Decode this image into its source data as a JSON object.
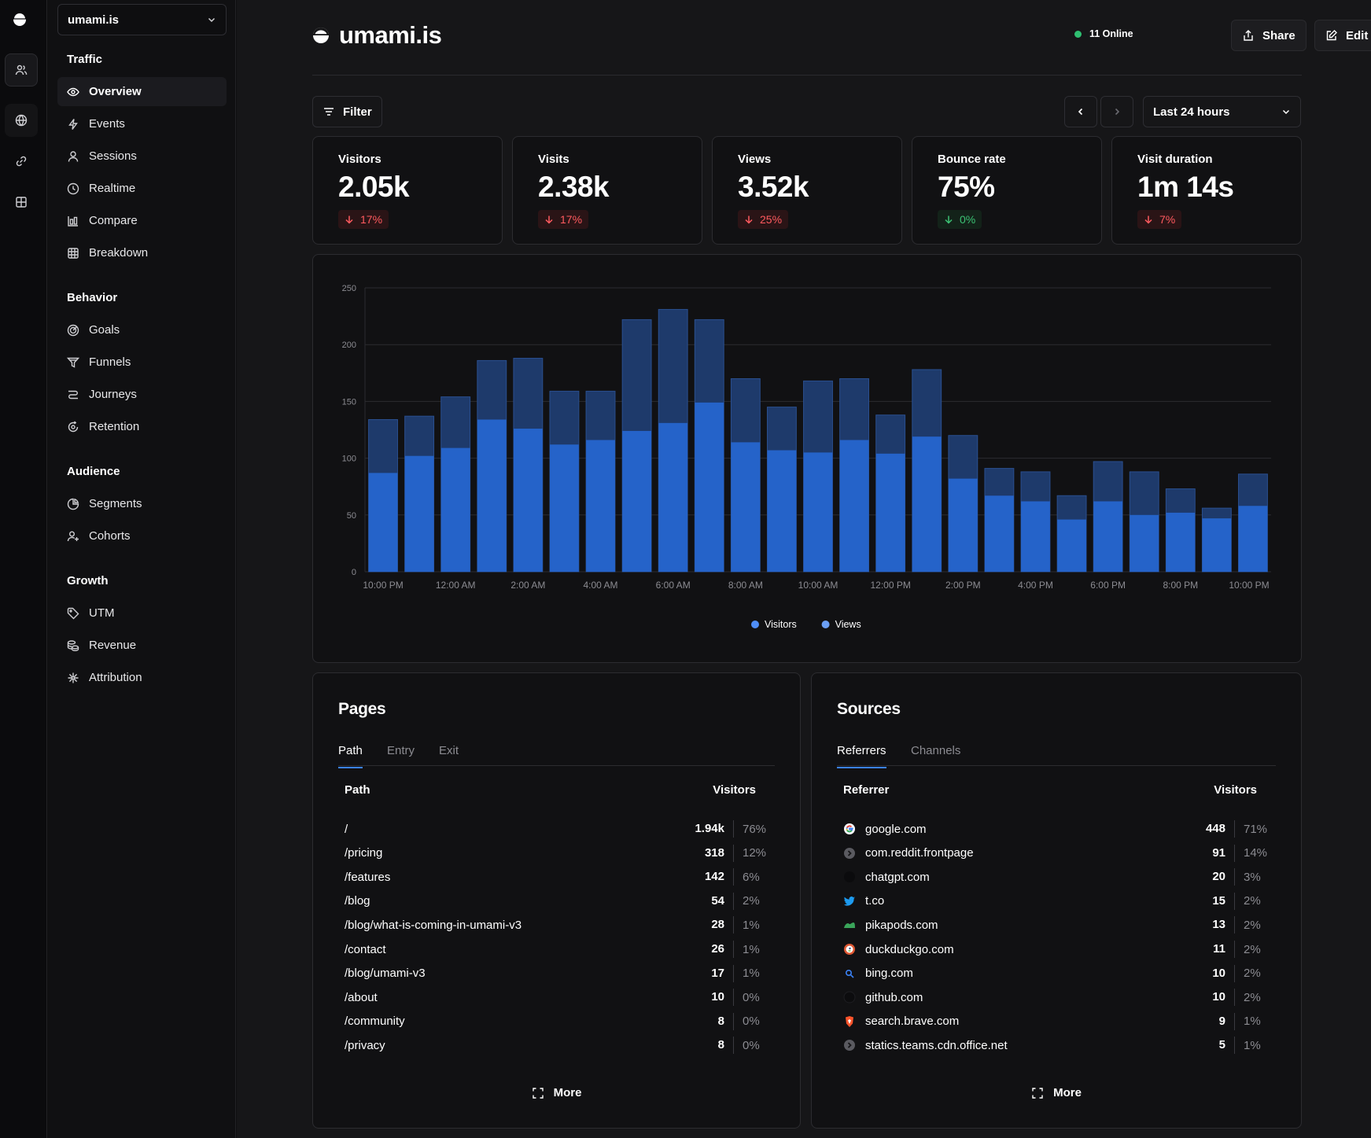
{
  "sidebar": {
    "site_select": "umami.is",
    "groups": [
      {
        "label": "Traffic",
        "items": [
          {
            "label": "Overview",
            "icon": "eye-icon"
          },
          {
            "label": "Events",
            "icon": "lightning-icon"
          },
          {
            "label": "Sessions",
            "icon": "user-icon"
          },
          {
            "label": "Realtime",
            "icon": "clock-icon"
          },
          {
            "label": "Compare",
            "icon": "compare-icon"
          },
          {
            "label": "Breakdown",
            "icon": "table-icon"
          }
        ]
      },
      {
        "label": "Behavior",
        "items": [
          {
            "label": "Goals",
            "icon": "target-icon"
          },
          {
            "label": "Funnels",
            "icon": "funnel-icon"
          },
          {
            "label": "Journeys",
            "icon": "route-icon"
          },
          {
            "label": "Retention",
            "icon": "retention-icon"
          }
        ]
      },
      {
        "label": "Audience",
        "items": [
          {
            "label": "Segments",
            "icon": "pie-icon"
          },
          {
            "label": "Cohorts",
            "icon": "user-plus-icon"
          }
        ]
      },
      {
        "label": "Growth",
        "items": [
          {
            "label": "UTM",
            "icon": "tag-icon"
          },
          {
            "label": "Revenue",
            "icon": "coins-icon"
          },
          {
            "label": "Attribution",
            "icon": "network-icon"
          }
        ]
      }
    ]
  },
  "header": {
    "title": "umami.is",
    "online": "11 Online",
    "share_label": "Share",
    "edit_label": "Edit"
  },
  "toolbar": {
    "filter_label": "Filter",
    "range_label": "Last 24 hours"
  },
  "metrics": [
    {
      "label": "Visitors",
      "value": "2.05k",
      "change": "17%",
      "direction": "down"
    },
    {
      "label": "Visits",
      "value": "2.38k",
      "change": "17%",
      "direction": "down"
    },
    {
      "label": "Views",
      "value": "3.52k",
      "change": "25%",
      "direction": "down"
    },
    {
      "label": "Bounce rate",
      "value": "75%",
      "change": "0%",
      "direction": "flat"
    },
    {
      "label": "Visit duration",
      "value": "1m 14s",
      "change": "7%",
      "direction": "down"
    }
  ],
  "chart_data": {
    "type": "bar",
    "stacked_overlay": true,
    "categories": [
      "10:00 PM",
      "11:00 PM",
      "12:00 AM",
      "1:00 AM",
      "2:00 AM",
      "3:00 AM",
      "4:00 AM",
      "5:00 AM",
      "6:00 AM",
      "7:00 AM",
      "8:00 AM",
      "9:00 AM",
      "10:00 AM",
      "11:00 AM",
      "12:00 PM",
      "1:00 PM",
      "2:00 PM",
      "3:00 PM",
      "4:00 PM",
      "5:00 PM",
      "6:00 PM",
      "7:00 PM",
      "8:00 PM",
      "9:00 PM",
      "10:00 PM"
    ],
    "x_tick_labels": [
      "10:00 PM",
      "12:00 AM",
      "2:00 AM",
      "4:00 AM",
      "6:00 AM",
      "8:00 AM",
      "10:00 AM",
      "12:00 PM",
      "2:00 PM",
      "4:00 PM",
      "6:00 PM",
      "8:00 PM",
      "10:00 PM"
    ],
    "series": [
      {
        "name": "Visitors",
        "color": "#2563c9",
        "values": [
          87,
          102,
          109,
          134,
          126,
          112,
          116,
          124,
          131,
          149,
          114,
          107,
          105,
          116,
          104,
          119,
          82,
          67,
          62,
          46,
          62,
          50,
          52,
          47,
          58
        ]
      },
      {
        "name": "Views",
        "color": "#1e3a6b",
        "values": [
          134,
          137,
          154,
          186,
          188,
          159,
          159,
          222,
          231,
          222,
          170,
          145,
          168,
          170,
          138,
          178,
          120,
          91,
          88,
          67,
          97,
          88,
          73,
          56,
          86
        ]
      }
    ],
    "ylim": [
      0,
      250
    ],
    "yticks": [
      0,
      50,
      100,
      150,
      200,
      250
    ],
    "legend": "bottom-center",
    "grid": true
  },
  "pages": {
    "title": "Pages",
    "tabs": [
      "Path",
      "Entry",
      "Exit"
    ],
    "col_label": "Path",
    "col_value": "Visitors",
    "rows": [
      {
        "label": "/",
        "value": "1.94k",
        "pct": "76%"
      },
      {
        "label": "/pricing",
        "value": "318",
        "pct": "12%"
      },
      {
        "label": "/features",
        "value": "142",
        "pct": "6%"
      },
      {
        "label": "/blog",
        "value": "54",
        "pct": "2%"
      },
      {
        "label": "/blog/what-is-coming-in-umami-v3",
        "value": "28",
        "pct": "1%"
      },
      {
        "label": "/contact",
        "value": "26",
        "pct": "1%"
      },
      {
        "label": "/blog/umami-v3",
        "value": "17",
        "pct": "1%"
      },
      {
        "label": "/about",
        "value": "10",
        "pct": "0%"
      },
      {
        "label": "/community",
        "value": "8",
        "pct": "0%"
      },
      {
        "label": "/privacy",
        "value": "8",
        "pct": "0%"
      }
    ],
    "more_label": "More"
  },
  "sources": {
    "title": "Sources",
    "tabs": [
      "Referrers",
      "Channels"
    ],
    "col_label": "Referrer",
    "col_value": "Visitors",
    "rows": [
      {
        "label": "google.com",
        "value": "448",
        "pct": "71%",
        "icon": "google-icon"
      },
      {
        "label": "com.reddit.frontpage",
        "value": "91",
        "pct": "14%",
        "icon": "link-arrow-icon"
      },
      {
        "label": "chatgpt.com",
        "value": "20",
        "pct": "3%",
        "icon": "chatgpt-icon"
      },
      {
        "label": "t.co",
        "value": "15",
        "pct": "2%",
        "icon": "twitter-icon"
      },
      {
        "label": "pikapods.com",
        "value": "13",
        "pct": "2%",
        "icon": "pikapods-icon"
      },
      {
        "label": "duckduckgo.com",
        "value": "11",
        "pct": "2%",
        "icon": "duckduckgo-icon"
      },
      {
        "label": "bing.com",
        "value": "10",
        "pct": "2%",
        "icon": "bing-icon"
      },
      {
        "label": "github.com",
        "value": "10",
        "pct": "2%",
        "icon": "github-icon"
      },
      {
        "label": "search.brave.com",
        "value": "9",
        "pct": "1%",
        "icon": "brave-icon"
      },
      {
        "label": "statics.teams.cdn.office.net",
        "value": "5",
        "pct": "1%",
        "icon": "link-arrow-icon"
      }
    ],
    "more_label": "More"
  }
}
